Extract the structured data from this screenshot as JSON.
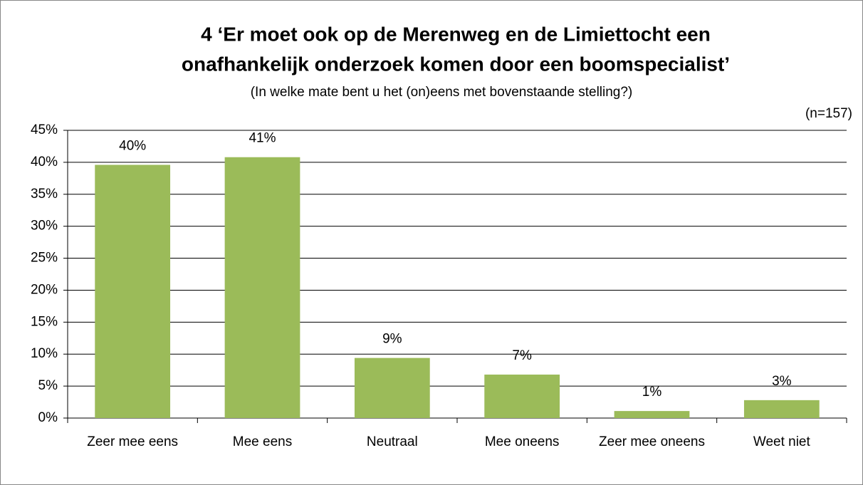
{
  "chart_data": {
    "type": "bar",
    "title": [
      "4 ‘Er moet ook op de Merenweg en de Limiettocht een",
      "onafhankelijk onderzoek komen door een boomspecialist’"
    ],
    "subtitle": "(In welke mate bent u het (on)eens met bovenstaande stelling?)",
    "annotation": "(n=157)",
    "categories": [
      "Zeer mee eens",
      "Mee eens",
      "Neutraal",
      "Mee oneens",
      "Zeer mee oneens",
      "Weet niet"
    ],
    "values": [
      39.6,
      40.8,
      9.4,
      6.8,
      1.1,
      2.8
    ],
    "value_labels": [
      "40%",
      "41%",
      "9%",
      "7%",
      "1%",
      "3%"
    ],
    "color": "#9bbb59",
    "ylim": [
      0,
      45
    ],
    "yticks": [
      {
        "value": 0,
        "label": "0%"
      },
      {
        "value": 5,
        "label": "5%"
      },
      {
        "value": 10,
        "label": "10%"
      },
      {
        "value": 15,
        "label": "15%"
      },
      {
        "value": 20,
        "label": "20%"
      },
      {
        "value": 25,
        "label": "25%"
      },
      {
        "value": 30,
        "label": "30%"
      },
      {
        "value": 35,
        "label": "35%"
      },
      {
        "value": 40,
        "label": "40%"
      },
      {
        "value": 45,
        "label": "45%"
      }
    ],
    "grid": true
  }
}
